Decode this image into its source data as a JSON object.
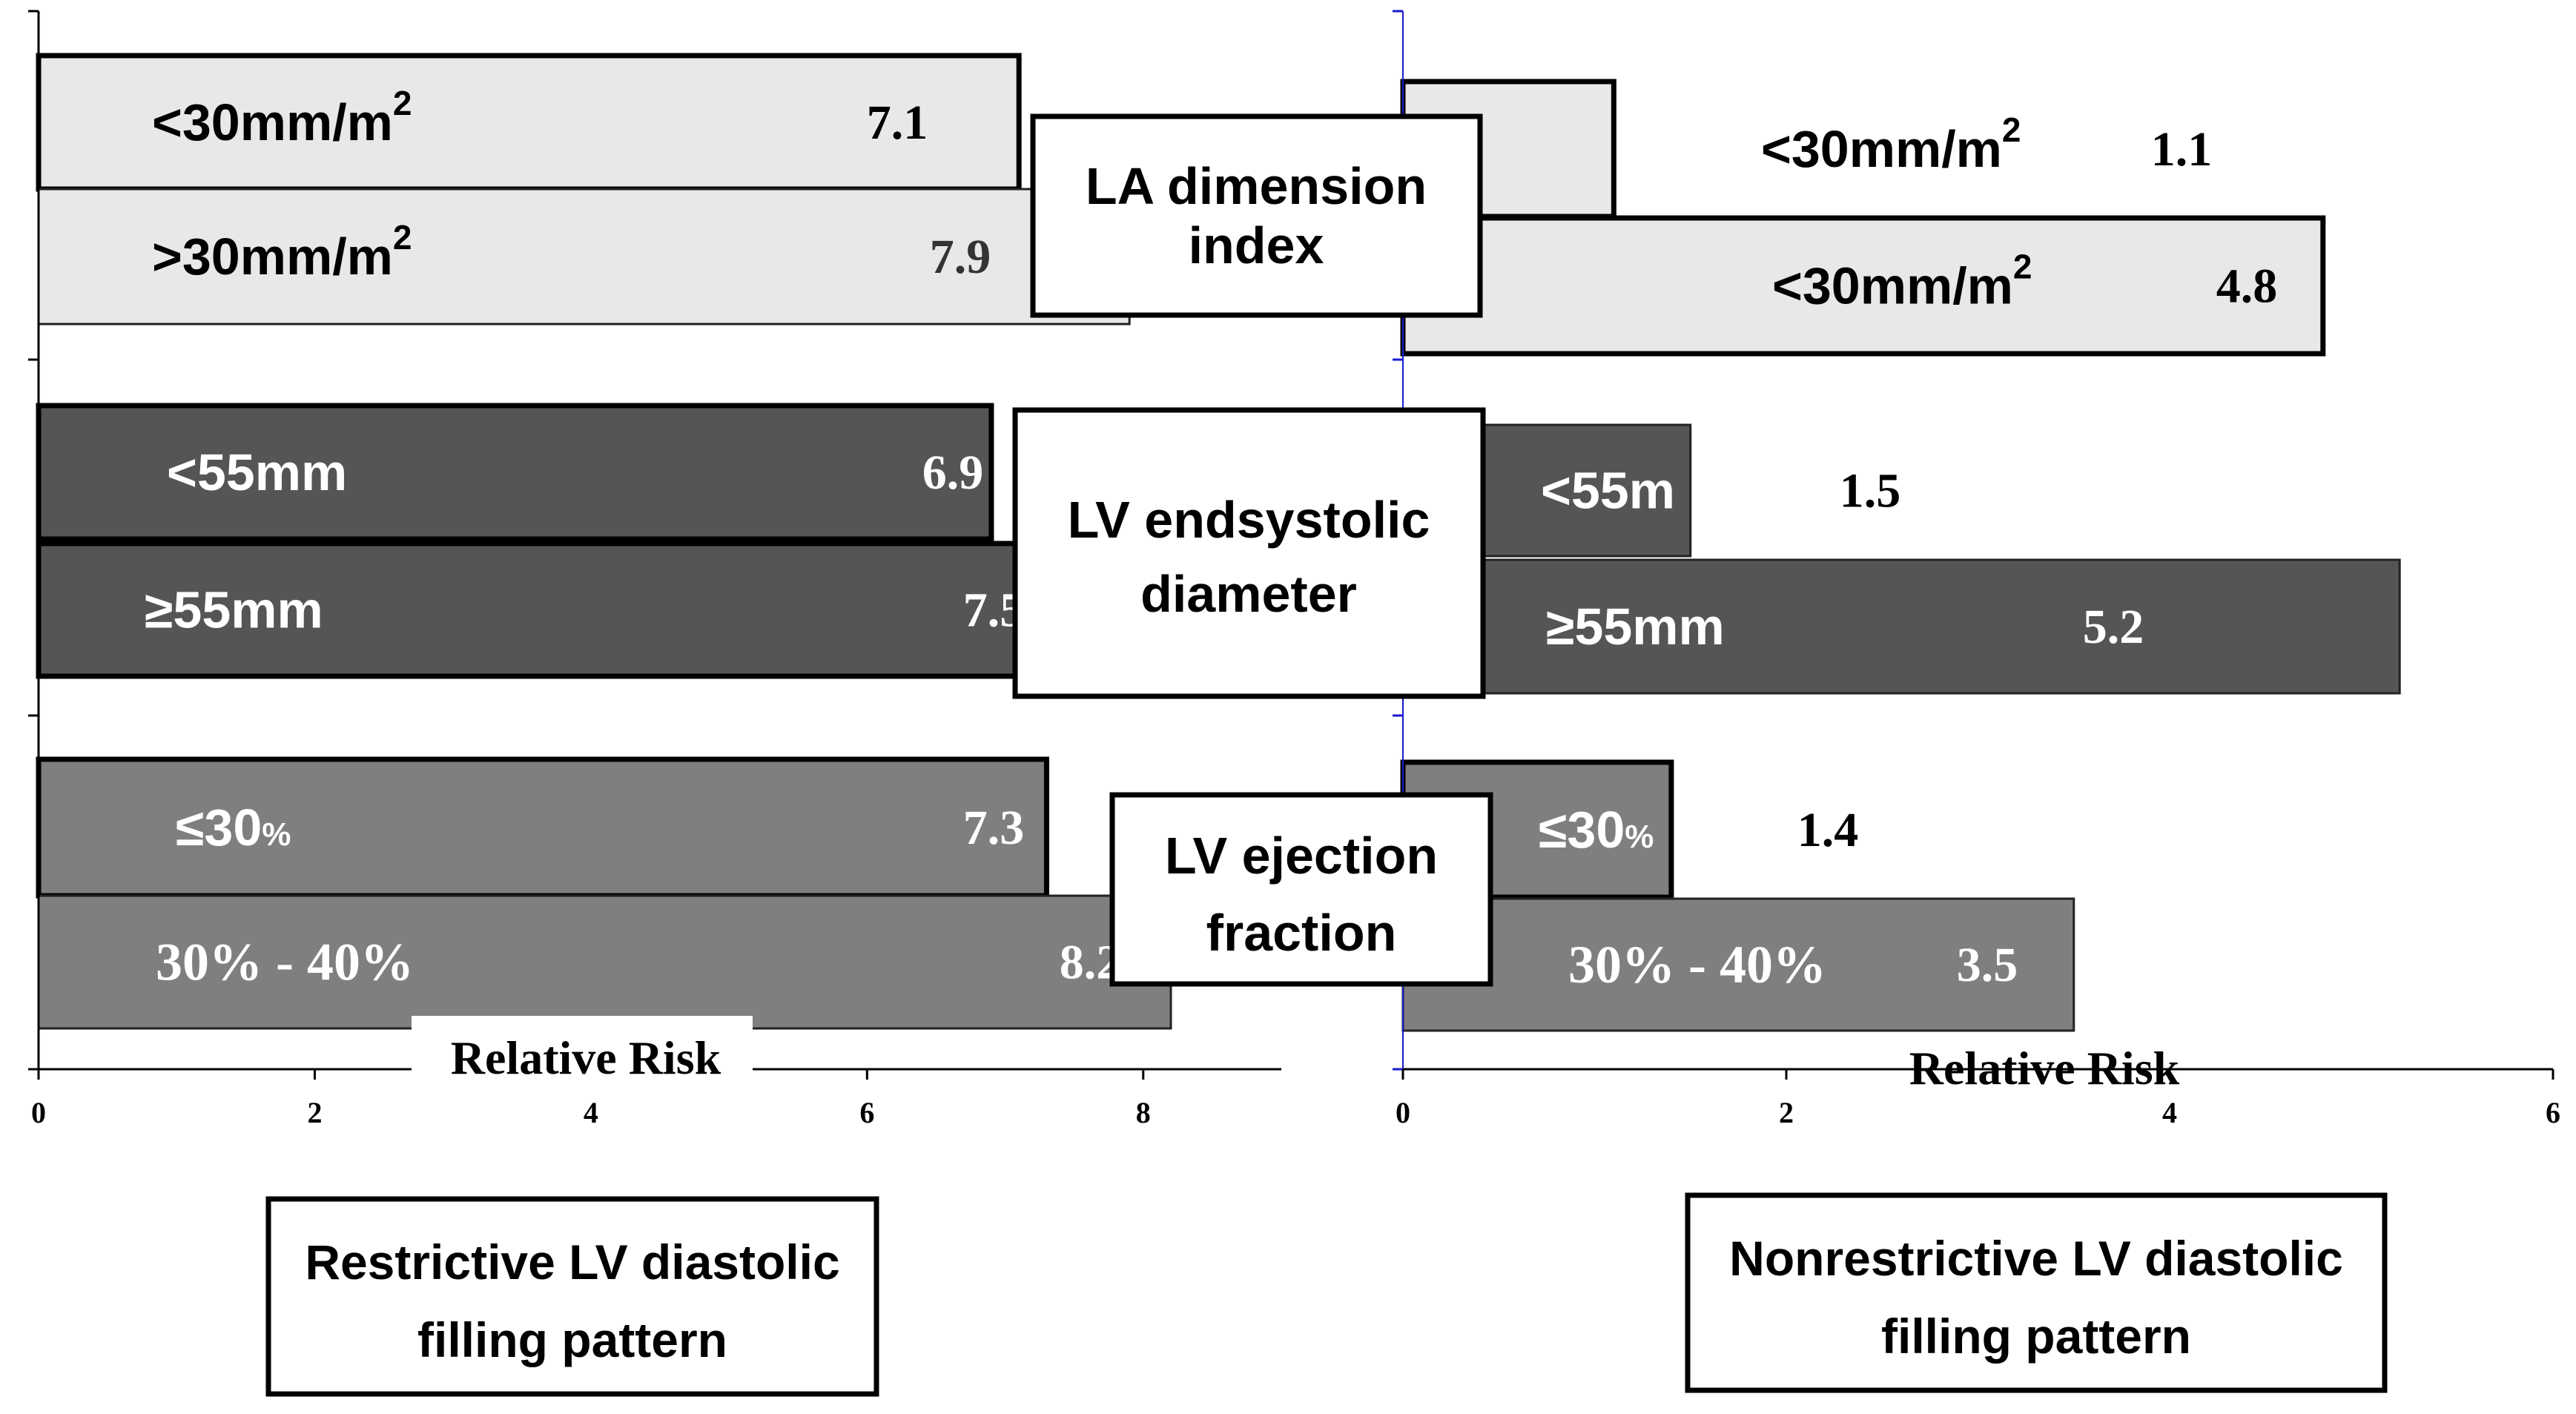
{
  "chart_data": [
    {
      "type": "bar",
      "orientation": "horizontal",
      "panel": "left",
      "xlabel": "Relative Risk",
      "xlim": [
        0,
        9
      ],
      "xticks": [
        "0",
        "2",
        "4",
        "6",
        "8"
      ],
      "footer": {
        "line1": "Restrictive LV diastolic",
        "line2": "filling pattern"
      },
      "bars": [
        {
          "group": "LA dimension index",
          "category": "<30mm/m",
          "sup": "2",
          "value": 7.1,
          "value_label": "7.1",
          "color": "#e8e8e8",
          "outlined": true
        },
        {
          "group": "LA dimension index",
          "category": ">30mm/m",
          "sup": "2",
          "value": 7.9,
          "value_label": "7.9",
          "color": "#e8e8e8",
          "outlined": false
        },
        {
          "group": "LV endsystolic diameter",
          "category": "<55mm",
          "sup": "",
          "value": 6.9,
          "value_label": "6.9",
          "color": "#555555",
          "outlined": true
        },
        {
          "group": "LV endsystolic diameter",
          "category": "≥55mm",
          "sup": "",
          "value": 7.5,
          "value_label": "7.5",
          "color": "#555555",
          "outlined": true
        },
        {
          "group": "LV ejection fraction",
          "category": "≤30",
          "sup": "",
          "pct": "%",
          "value": 7.3,
          "value_label": "7.3",
          "color": "#7f7f7f",
          "outlined": true
        },
        {
          "group": "LV ejection fraction",
          "category": "30% - 40%",
          "sup": "",
          "value": 8.2,
          "value_label": "8.2",
          "color": "#7f7f7f",
          "outlined": false
        }
      ]
    },
    {
      "type": "bar",
      "orientation": "horizontal",
      "panel": "right",
      "xlabel": "Relative Risk",
      "xlim": [
        0,
        6
      ],
      "xticks": [
        "0",
        "2",
        "4",
        "6"
      ],
      "footer": {
        "line1": "Nonrestrictive LV diastolic",
        "line2": "filling pattern"
      },
      "bars": [
        {
          "group": "LA dimension index",
          "category": "<30mm/m",
          "sup": "2",
          "value": 1.1,
          "value_label": "1.1",
          "color": "#e8e8e8",
          "outlined": true
        },
        {
          "group": "LA dimension index",
          "category": "<30mm/m",
          "sup": "2",
          "value": 4.8,
          "value_label": "4.8",
          "color": "#e8e8e8",
          "outlined": true
        },
        {
          "group": "LV endsystolic diameter",
          "category": "<55m",
          "sup": "",
          "value": 1.5,
          "value_label": "1.5",
          "color": "#555555",
          "outlined": false
        },
        {
          "group": "LV endsystolic diameter",
          "category": "≥55mm",
          "sup": "",
          "value": 5.2,
          "value_label": "5.2",
          "color": "#555555",
          "outlined": false
        },
        {
          "group": "LV ejection fraction",
          "category": "≤30",
          "sup": "",
          "pct": "%",
          "value": 1.4,
          "value_label": "1.4",
          "color": "#7f7f7f",
          "outlined": true
        },
        {
          "group": "LV ejection fraction",
          "category": "30% - 40%",
          "sup": "",
          "value": 3.5,
          "value_label": "3.5",
          "color": "#7f7f7f",
          "outlined": false
        }
      ]
    }
  ],
  "group_labels": [
    {
      "line1": "LA dimension",
      "line2": "index"
    },
    {
      "line1": "LV endsystolic",
      "line2": "diameter"
    },
    {
      "line1": "LV ejection",
      "line2": "fraction"
    }
  ]
}
